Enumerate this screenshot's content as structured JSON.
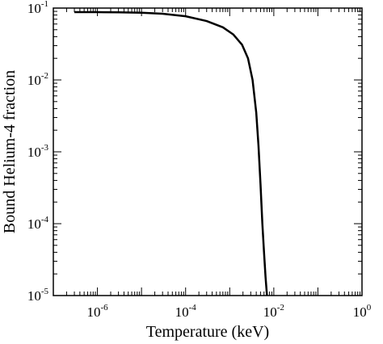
{
  "chart_data": {
    "type": "line",
    "title": "",
    "xlabel": "Temperature (keV)",
    "ylabel": "Bound Helium-4 fraction",
    "xscale": "log",
    "yscale": "log",
    "xlim": [
      1e-07,
      1
    ],
    "ylim": [
      1e-05,
      0.1
    ],
    "grid": false,
    "legend": "none",
    "x_ticks": [
      {
        "value": 1e-06,
        "base": "10",
        "exp": "-6"
      },
      {
        "value": 0.0001,
        "base": "10",
        "exp": "-4"
      },
      {
        "value": 0.01,
        "base": "10",
        "exp": "-2"
      },
      {
        "value": 1,
        "base": "10",
        "exp": "0"
      }
    ],
    "y_ticks": [
      {
        "value": 1e-05,
        "base": "10",
        "exp": "-5"
      },
      {
        "value": 0.0001,
        "base": "10",
        "exp": "-4"
      },
      {
        "value": 0.001,
        "base": "10",
        "exp": "-3"
      },
      {
        "value": 0.01,
        "base": "10",
        "exp": "-2"
      },
      {
        "value": 0.1,
        "base": "10",
        "exp": "-1"
      }
    ],
    "series": [
      {
        "color": "#000000",
        "x": [
          3e-07,
          1e-06,
          3e-06,
          1e-05,
          3e-05,
          0.0001,
          0.0003,
          0.0007,
          0.0012,
          0.0019,
          0.0026,
          0.0033,
          0.004,
          0.0045,
          0.005,
          0.0055,
          0.006,
          0.0065,
          0.007
        ],
        "y": [
          0.088,
          0.0878,
          0.0873,
          0.0863,
          0.0835,
          0.077,
          0.066,
          0.054,
          0.043,
          0.031,
          0.02,
          0.01,
          0.0035,
          0.0012,
          0.00035,
          0.0001,
          4e-05,
          1.8e-05,
          1e-05
        ]
      }
    ]
  }
}
